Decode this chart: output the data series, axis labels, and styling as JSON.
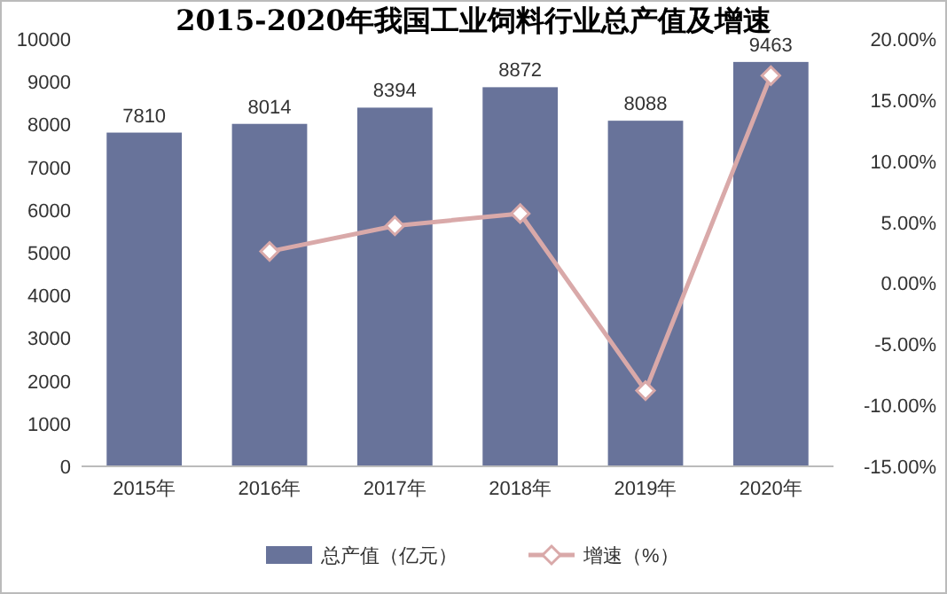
{
  "chart_data": {
    "type": "bar",
    "title": "2015-2020年我国工业饲料行业总产值及增速",
    "categories": [
      "2015年",
      "2016年",
      "2017年",
      "2018年",
      "2019年",
      "2020年"
    ],
    "series": [
      {
        "name": "总产值（亿元）",
        "color": "#68739a",
        "values": [
          7810,
          8014,
          8394,
          8872,
          8088,
          9463
        ],
        "value_labels": [
          "7810",
          "8014",
          "8394",
          "8872",
          "8088",
          "9463"
        ]
      },
      {
        "name": "增速（%）",
        "type": "line",
        "axis": "y2",
        "color": "#d9a9a9",
        "marker": "diamond",
        "values": [
          null,
          2.6,
          4.7,
          5.7,
          -8.8,
          17.0
        ]
      }
    ],
    "ylim": [
      0,
      10000
    ],
    "yticks": [
      0,
      1000,
      2000,
      3000,
      4000,
      5000,
      6000,
      7000,
      8000,
      9000,
      10000
    ],
    "y2lim": [
      -15,
      20
    ],
    "y2ticks": [
      {
        "value": -15,
        "label": "-15.00%"
      },
      {
        "value": -10,
        "label": "-10.00%"
      },
      {
        "value": -5,
        "label": "-5.00%"
      },
      {
        "value": 0,
        "label": "0.00%"
      },
      {
        "value": 5,
        "label": "5.00%"
      },
      {
        "value": 10,
        "label": "10.00%"
      },
      {
        "value": 15,
        "label": "15.00%"
      },
      {
        "value": 20,
        "label": "20.00%"
      }
    ],
    "legend": "bottom",
    "grid": false
  }
}
